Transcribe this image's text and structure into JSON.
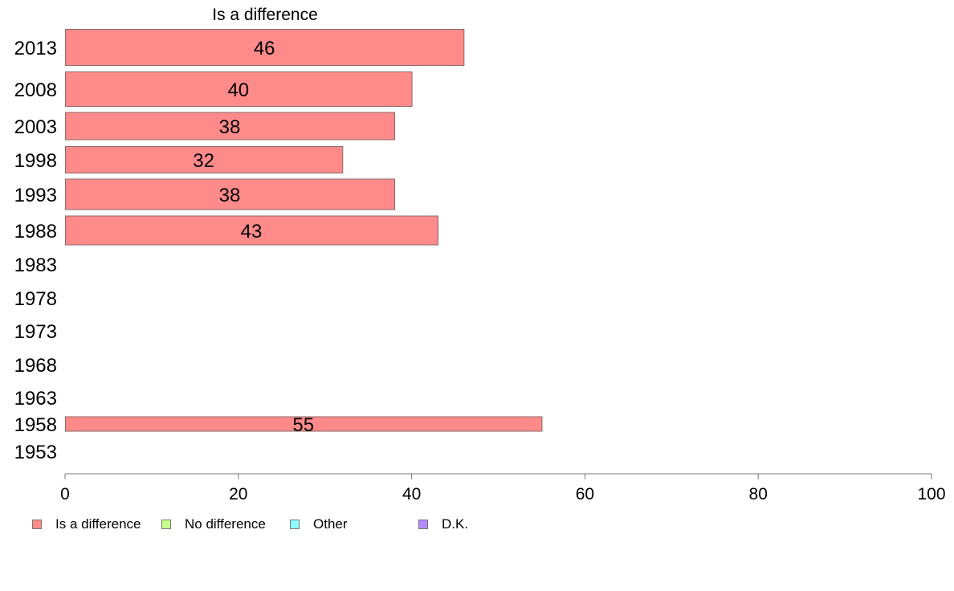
{
  "chart_data": {
    "type": "bar",
    "orientation": "horizontal",
    "title": "Is a difference",
    "categories": [
      "2013",
      "2008",
      "2003",
      "1998",
      "1993",
      "1988",
      "1983",
      "1978",
      "1973",
      "1968",
      "1963",
      "1958",
      "1953"
    ],
    "series": [
      {
        "name": "Is a difference",
        "values": [
          46,
          40,
          38,
          32,
          38,
          43,
          null,
          null,
          null,
          null,
          null,
          55,
          null
        ],
        "labels": [
          "46",
          "40",
          "38",
          "32",
          "38",
          "43",
          "",
          "",
          "",
          "",
          "",
          "55",
          ""
        ],
        "color": "#ff8a8a"
      }
    ],
    "xlim": [
      0,
      100
    ],
    "xticks": [
      "0",
      "20",
      "40",
      "60",
      "80",
      "100"
    ],
    "grid": false,
    "legend_placement": "bottom",
    "legend": [
      {
        "label": "Is a difference",
        "color": "#ff8a8a"
      },
      {
        "label": "No difference",
        "color": "#c8ff8a"
      },
      {
        "label": "Other",
        "color": "#8affff"
      },
      {
        "label": "D.K.",
        "color": "#b58aff"
      }
    ]
  }
}
